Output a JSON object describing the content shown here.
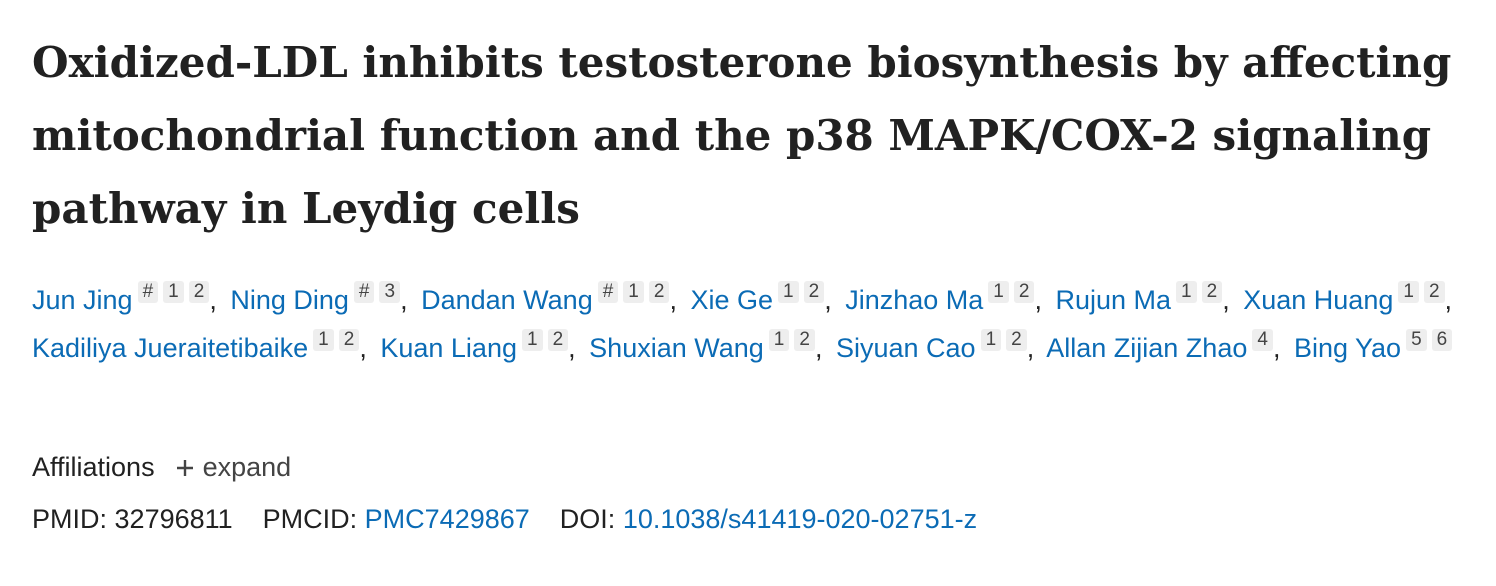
{
  "article": {
    "title": "Oxidized-LDL inhibits testosterone biosynthesis by affecting mitochondrial function and the p38 MAPK/COX-2 signaling pathway in Leydig cells",
    "authors": [
      {
        "name": "Jun Jing",
        "markers": [
          "#",
          "1",
          "2"
        ],
        "separator": ","
      },
      {
        "name": "Ning Ding",
        "markers": [
          "#",
          "3"
        ],
        "separator": ","
      },
      {
        "name": "Dandan Wang",
        "markers": [
          "#",
          "1",
          "2"
        ],
        "separator": ","
      },
      {
        "name": "Xie Ge",
        "markers": [
          "1",
          "2"
        ],
        "separator": ","
      },
      {
        "name": "Jinzhao Ma",
        "markers": [
          "1",
          "2"
        ],
        "separator": ","
      },
      {
        "name": "Rujun Ma",
        "markers": [
          "1",
          "2"
        ],
        "separator": ","
      },
      {
        "name": "Xuan Huang",
        "markers": [
          "1",
          "2"
        ],
        "separator": ","
      },
      {
        "name": "Kadiliya Jueraitetibaike",
        "markers": [
          "1",
          "2"
        ],
        "separator": ","
      },
      {
        "name": "Kuan Liang",
        "markers": [
          "1",
          "2"
        ],
        "separator": ","
      },
      {
        "name": "Shuxian Wang",
        "markers": [
          "1",
          "2"
        ],
        "separator": ","
      },
      {
        "name": "Siyuan Cao",
        "markers": [
          "1",
          "2"
        ],
        "separator": ","
      },
      {
        "name": "Allan Zijian Zhao",
        "markers": [
          "4"
        ],
        "separator": ","
      },
      {
        "name": "Bing Yao",
        "markers": [
          "5",
          "6"
        ]
      }
    ],
    "affiliations": {
      "label": "Affiliations",
      "toggle": "expand"
    },
    "identifiers": [
      {
        "label": "PMID:",
        "value": "32796811"
      },
      {
        "label": "PMCID:",
        "value": "PMC7429867",
        "link": true
      },
      {
        "label": "DOI:",
        "value": "10.1038/s41419-020-02751-z",
        "link": true
      }
    ]
  }
}
